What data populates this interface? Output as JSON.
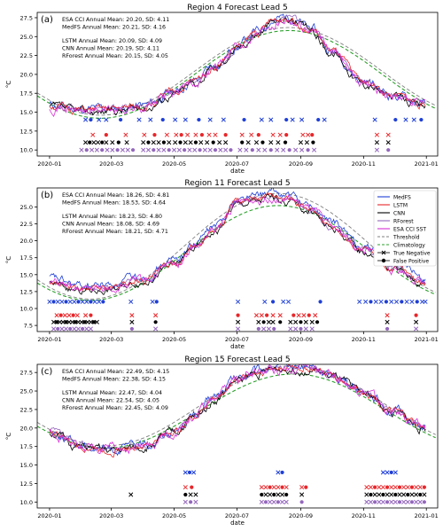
{
  "chart_data": [
    {
      "type": "line",
      "panel_label": "(a)",
      "title": "Region 4 Forecast Lead 5",
      "xlabel": "date",
      "ylabel": "°C",
      "ylim": [
        9.2,
        28.2
      ],
      "xlim": [
        "2019-12-20",
        "2021-01-12"
      ],
      "x_ticks": [
        "2020-01",
        "2020-03",
        "2020-05",
        "2020-07",
        "2020-09",
        "2020-11",
        "2021-01"
      ],
      "y_ticks": [
        10.0,
        12.5,
        15.0,
        17.5,
        20.0,
        22.5,
        25.0,
        27.5
      ],
      "stats": [
        [
          "ESA CCI Annual Mean: 20.20, SD:  4.11",
          "MedFS Annual Mean: 20.21, SD:  4.16"
        ],
        [
          "LSTM Annual Mean: 20.09, SD: 4.09",
          "CNN Annual Mean: 20.19, SD: 4.11",
          "RForest Annual Mean: 20.15, SD: 4.05"
        ]
      ],
      "climatology": {
        "mean": 20.0,
        "amplitude": 5.8,
        "peak": "2020-08-20"
      },
      "threshold": {
        "mean": 20.4,
        "amplitude": 5.8,
        "peak": "2020-08-20"
      },
      "sst_curve": {
        "x": [
          "2020-01-01",
          "2020-02-01",
          "2020-03-01",
          "2020-04-01",
          "2020-05-01",
          "2020-05-20",
          "2020-06-10",
          "2020-07-01",
          "2020-07-20",
          "2020-08-05",
          "2020-08-20",
          "2020-09-10",
          "2020-10-01",
          "2020-11-01",
          "2020-12-01",
          "2020-12-31"
        ],
        "y": [
          15.8,
          15.2,
          15.3,
          15.7,
          17.5,
          19.0,
          21.0,
          23.5,
          25.5,
          27.0,
          27.5,
          26.0,
          23.0,
          19.0,
          17.0,
          16.0
        ]
      },
      "markers": [
        {
          "series": "MedFS",
          "color": "#1f3fd6",
          "y": 14.0,
          "dates": [
            "2020-02-05",
            "2020-02-10",
            "2020-02-18",
            "2020-02-25",
            "2020-03-10",
            "2020-03-28",
            "2020-04-08",
            "2020-04-20",
            "2020-05-02",
            "2020-05-12",
            "2020-05-25",
            "2020-06-05",
            "2020-06-18",
            "2020-07-08",
            "2020-07-25",
            "2020-08-03",
            "2020-08-18",
            "2020-08-24",
            "2020-09-02",
            "2020-09-18",
            "2020-09-24",
            "2020-11-12",
            "2020-12-02",
            "2020-12-12",
            "2020-12-20",
            "2020-12-27"
          ]
        },
        {
          "series": "LSTM",
          "color": "#e8262a",
          "y": 12.0,
          "dates": [
            "2020-02-12",
            "2020-02-25",
            "2020-03-15",
            "2020-04-02",
            "2020-04-12",
            "2020-04-24",
            "2020-05-03",
            "2020-05-08",
            "2020-05-14",
            "2020-05-22",
            "2020-05-28",
            "2020-06-04",
            "2020-06-10",
            "2020-06-20",
            "2020-07-06",
            "2020-07-15",
            "2020-07-22",
            "2020-08-05",
            "2020-08-12",
            "2020-08-18",
            "2020-09-03",
            "2020-09-08",
            "2020-09-12",
            "2020-11-14",
            "2020-11-25"
          ]
        },
        {
          "series": "CNN",
          "color": "#000000",
          "y": 11.0,
          "dates": [
            "2020-02-05",
            "2020-02-09",
            "2020-02-13",
            "2020-02-17",
            "2020-02-21",
            "2020-02-25",
            "2020-03-02",
            "2020-03-08",
            "2020-03-16",
            "2020-04-01",
            "2020-04-06",
            "2020-04-11",
            "2020-04-16",
            "2020-04-21",
            "2020-04-26",
            "2020-05-02",
            "2020-05-07",
            "2020-05-12",
            "2020-05-17",
            "2020-05-22",
            "2020-05-27",
            "2020-06-02",
            "2020-06-08",
            "2020-06-14",
            "2020-06-20",
            "2020-07-06",
            "2020-07-12",
            "2020-07-20",
            "2020-07-26",
            "2020-08-03",
            "2020-08-10",
            "2020-08-17",
            "2020-09-01",
            "2020-09-07",
            "2020-09-13",
            "2020-11-14",
            "2020-11-25"
          ]
        },
        {
          "series": "RForest",
          "color": "#9467bd",
          "y": 10.0,
          "dates": [
            "2020-02-01",
            "2020-02-06",
            "2020-02-11",
            "2020-02-16",
            "2020-02-21",
            "2020-02-26",
            "2020-03-02",
            "2020-03-07",
            "2020-03-12",
            "2020-03-17",
            "2020-03-22",
            "2020-04-01",
            "2020-04-06",
            "2020-04-11",
            "2020-04-16",
            "2020-04-21",
            "2020-04-26",
            "2020-05-01",
            "2020-05-06",
            "2020-05-11",
            "2020-05-16",
            "2020-05-21",
            "2020-05-26",
            "2020-05-31",
            "2020-06-05",
            "2020-06-10",
            "2020-06-15",
            "2020-06-20",
            "2020-06-25",
            "2020-07-04",
            "2020-07-10",
            "2020-07-16",
            "2020-07-22",
            "2020-07-28",
            "2020-08-03",
            "2020-08-09",
            "2020-08-15",
            "2020-08-21",
            "2020-08-27",
            "2020-09-02",
            "2020-09-08",
            "2020-09-14",
            "2020-11-14",
            "2020-11-25"
          ]
        }
      ]
    },
    {
      "type": "line",
      "panel_label": "(b)",
      "title": "Region 11 Forecast Lead 5",
      "xlabel": "date",
      "ylabel": "°C",
      "ylim": [
        6.6,
        27.8
      ],
      "xlim": [
        "2019-12-20",
        "2021-01-12"
      ],
      "x_ticks": [
        "2020-01",
        "2020-03",
        "2020-05",
        "2020-07",
        "2020-09",
        "2020-11",
        "2021-01"
      ],
      "y_ticks": [
        7.5,
        10.0,
        12.5,
        15.0,
        17.5,
        20.0,
        22.5,
        25.0
      ],
      "stats": [
        [
          "ESA CCI Annual Mean: 18.26, SD:  4.81",
          "MedFS Annual Mean: 18.53, SD:  4.64"
        ],
        [
          "LSTM Annual Mean: 18.23, SD: 4.80",
          "CNN Annual Mean: 18.08, SD: 4.69",
          "RForest Annual Mean: 18.21, SD: 4.71"
        ]
      ],
      "climatology": {
        "mean": 18.2,
        "amplitude": 7.0,
        "peak": "2020-08-10"
      },
      "threshold": {
        "mean": 19.2,
        "amplitude": 7.8,
        "peak": "2020-08-10"
      },
      "sst_curve": {
        "x": [
          "2020-01-01",
          "2020-02-01",
          "2020-03-01",
          "2020-04-01",
          "2020-05-01",
          "2020-05-20",
          "2020-06-10",
          "2020-07-01",
          "2020-07-20",
          "2020-08-05",
          "2020-08-20",
          "2020-09-10",
          "2020-10-01",
          "2020-11-01",
          "2020-12-01",
          "2020-12-31"
        ],
        "y": [
          13.8,
          12.7,
          13.0,
          14.2,
          16.5,
          19.0,
          21.5,
          25.5,
          26.0,
          26.5,
          26.0,
          24.5,
          22.0,
          18.5,
          15.8,
          13.8
        ]
      },
      "markers": [
        {
          "series": "MedFS",
          "color": "#1f3fd6",
          "y": 11.0,
          "dates": [
            "2020-01-01",
            "2020-01-05",
            "2020-01-09",
            "2020-01-13",
            "2020-01-17",
            "2020-01-21",
            "2020-01-25",
            "2020-01-29",
            "2020-02-02",
            "2020-02-06",
            "2020-02-10",
            "2020-02-14",
            "2020-02-18",
            "2020-02-22",
            "2020-03-20",
            "2020-04-10",
            "2020-04-14",
            "2020-07-02",
            "2020-07-28",
            "2020-08-05",
            "2020-08-15",
            "2020-08-20",
            "2020-09-20",
            "2020-10-28",
            "2020-11-03",
            "2020-11-08",
            "2020-11-13",
            "2020-11-18",
            "2020-11-23",
            "2020-11-28",
            "2020-12-03",
            "2020-12-08",
            "2020-12-13",
            "2020-12-18",
            "2020-12-23",
            "2020-12-28",
            "2020-12-31"
          ]
        },
        {
          "series": "LSTM",
          "color": "#e8262a",
          "y": 9.0,
          "dates": [
            "2020-01-08",
            "2020-01-12",
            "2020-01-16",
            "2020-01-20",
            "2020-01-24",
            "2020-01-28",
            "2020-02-05",
            "2020-02-10",
            "2020-03-21",
            "2020-04-13",
            "2020-07-02",
            "2020-07-20",
            "2020-07-25",
            "2020-07-30",
            "2020-08-05",
            "2020-08-12",
            "2020-08-25",
            "2020-08-30",
            "2020-09-04",
            "2020-09-09",
            "2020-09-15",
            "2020-11-24",
            "2020-12-22"
          ]
        },
        {
          "series": "CNN",
          "color": "#000000",
          "y": 8.0,
          "dates": [
            "2020-01-05",
            "2020-01-08",
            "2020-01-11",
            "2020-01-14",
            "2020-01-17",
            "2020-01-20",
            "2020-01-23",
            "2020-01-26",
            "2020-01-29",
            "2020-02-01",
            "2020-02-04",
            "2020-02-07",
            "2020-02-10",
            "2020-02-13",
            "2020-02-16",
            "2020-03-21",
            "2020-04-13",
            "2020-07-02",
            "2020-07-22",
            "2020-07-27",
            "2020-08-01",
            "2020-08-05",
            "2020-08-12",
            "2020-08-22",
            "2020-08-27",
            "2020-09-01",
            "2020-09-06",
            "2020-09-12",
            "2020-09-17",
            "2020-11-24",
            "2020-12-22"
          ]
        },
        {
          "series": "RForest",
          "color": "#9467bd",
          "y": 7.0,
          "dates": [
            "2020-01-05",
            "2020-01-09",
            "2020-01-13",
            "2020-01-17",
            "2020-01-21",
            "2020-01-25",
            "2020-01-29",
            "2020-02-02",
            "2020-02-06",
            "2020-02-10",
            "2020-03-21",
            "2020-04-13",
            "2020-07-02",
            "2020-07-22",
            "2020-07-27",
            "2020-08-01",
            "2020-08-06",
            "2020-08-22",
            "2020-08-27",
            "2020-09-01",
            "2020-09-06",
            "2020-09-12",
            "2020-11-24",
            "2020-12-22"
          ]
        }
      ],
      "legend": {
        "placement": "top-right",
        "entries": [
          {
            "label": "MedFS",
            "color": "#1f3fd6",
            "kind": "line"
          },
          {
            "label": "LSTM",
            "color": "#e8262a",
            "kind": "line"
          },
          {
            "label": "CNN",
            "color": "#000000",
            "kind": "line"
          },
          {
            "label": "RForest",
            "color": "#9467bd",
            "kind": "line"
          },
          {
            "label": "ESA CCI SST",
            "color": "#d62fd6",
            "kind": "line"
          },
          {
            "label": "Threshold",
            "color": "#7f7f7f",
            "kind": "dashed"
          },
          {
            "label": "Climatology",
            "color": "#2ca02c",
            "kind": "dashed"
          },
          {
            "label": "True Negative",
            "color": "#000000",
            "kind": "x"
          },
          {
            "label": "False Positive",
            "color": "#000000",
            "kind": "dot"
          }
        ]
      }
    },
    {
      "type": "line",
      "panel_label": "(c)",
      "title": "Region 15 Forecast Lead 5",
      "xlabel": "date",
      "ylabel": "°C",
      "ylim": [
        9.2,
        28.6
      ],
      "xlim": [
        "2019-12-20",
        "2021-01-12"
      ],
      "x_ticks": [
        "2020-01",
        "2020-03",
        "2020-05",
        "2020-07",
        "2020-09",
        "2020-11",
        "2021-01"
      ],
      "y_ticks": [
        10.0,
        12.5,
        15.0,
        17.5,
        20.0,
        22.5,
        25.0,
        27.5
      ],
      "stats": [
        [
          "ESA CCI Annual Mean: 22.49, SD:  4.15",
          "MedFS Annual Mean: 22.38, SD:  4.15"
        ],
        [
          "LSTM Annual Mean: 22.47, SD: 4.04",
          "CNN Annual Mean: 22.54, SD: 4.05",
          "RForest Annual Mean: 22.45, SD: 4.09"
        ]
      ],
      "climatology": {
        "mean": 22.3,
        "amplitude": 5.0,
        "peak": "2020-08-25"
      },
      "threshold": {
        "mean": 23.0,
        "amplitude": 5.4,
        "peak": "2020-08-25"
      },
      "sst_curve": {
        "x": [
          "2020-01-01",
          "2020-02-01",
          "2020-03-01",
          "2020-04-01",
          "2020-05-01",
          "2020-05-20",
          "2020-06-10",
          "2020-07-01",
          "2020-07-20",
          "2020-08-05",
          "2020-08-20",
          "2020-09-10",
          "2020-10-01",
          "2020-11-01",
          "2020-12-01",
          "2020-12-31"
        ],
        "y": [
          19.5,
          17.5,
          17.0,
          17.5,
          19.5,
          21.5,
          24.0,
          26.5,
          27.5,
          28.0,
          28.2,
          28.0,
          27.0,
          25.0,
          22.0,
          20.0
        ]
      },
      "markers": [
        {
          "series": "MedFS",
          "color": "#1f3fd6",
          "y": 14.0,
          "dates": [
            "2020-05-12",
            "2020-05-16",
            "2020-05-20",
            "2020-08-10",
            "2020-08-14",
            "2020-11-20",
            "2020-11-24",
            "2020-11-28",
            "2020-12-02"
          ]
        },
        {
          "series": "LSTM",
          "color": "#e8262a",
          "y": 12.0,
          "dates": [
            "2020-05-12",
            "2020-05-18",
            "2020-07-25",
            "2020-07-29",
            "2020-08-02",
            "2020-08-06",
            "2020-08-10",
            "2020-08-14",
            "2020-08-18",
            "2020-09-02",
            "2020-09-06",
            "2020-11-04",
            "2020-11-08",
            "2020-11-12",
            "2020-11-16",
            "2020-11-20",
            "2020-11-24",
            "2020-11-28",
            "2020-12-02",
            "2020-12-06",
            "2020-12-10",
            "2020-12-14",
            "2020-12-18",
            "2020-12-22",
            "2020-12-26",
            "2020-12-30"
          ]
        },
        {
          "series": "CNN",
          "color": "#000000",
          "y": 11.0,
          "dates": [
            "2020-03-20",
            "2020-05-12",
            "2020-05-17",
            "2020-05-22",
            "2020-07-25",
            "2020-07-29",
            "2020-08-02",
            "2020-08-06",
            "2020-08-10",
            "2020-08-14",
            "2020-08-18",
            "2020-09-02",
            "2020-11-04",
            "2020-11-08",
            "2020-11-12",
            "2020-11-16",
            "2020-11-20",
            "2020-11-24",
            "2020-11-28",
            "2020-12-02",
            "2020-12-06",
            "2020-12-10",
            "2020-12-14",
            "2020-12-18",
            "2020-12-22",
            "2020-12-26",
            "2020-12-30"
          ]
        },
        {
          "series": "RForest",
          "color": "#9467bd",
          "y": 10.0,
          "dates": [
            "2020-05-12",
            "2020-05-17",
            "2020-05-22",
            "2020-07-25",
            "2020-07-29",
            "2020-08-02",
            "2020-08-06",
            "2020-08-10",
            "2020-08-14",
            "2020-08-18",
            "2020-09-02",
            "2020-11-04",
            "2020-11-08",
            "2020-11-12",
            "2020-11-16",
            "2020-11-20",
            "2020-11-24",
            "2020-11-28",
            "2020-12-02",
            "2020-12-06",
            "2020-12-10",
            "2020-12-14",
            "2020-12-18",
            "2020-12-22",
            "2020-12-26",
            "2020-12-30"
          ]
        }
      ]
    }
  ]
}
